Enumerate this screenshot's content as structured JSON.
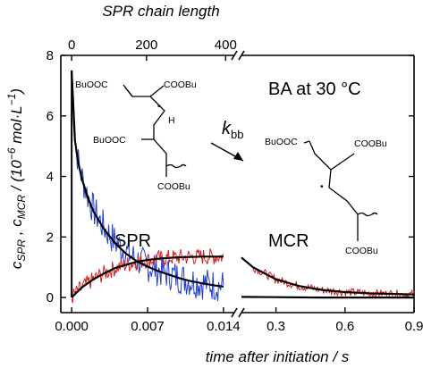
{
  "chart_data": {
    "type": "line",
    "title": "",
    "top_axis": {
      "label": "SPR chain length",
      "ticks": [
        {
          "text": "0",
          "t": 0.0
        },
        {
          "text": "200",
          "t": 0.0069
        },
        {
          "text": "400",
          "t": 0.0142
        }
      ]
    },
    "xlabel": "time after initiation / s",
    "x_segments": [
      {
        "xlim": [
          -0.001,
          0.015
        ],
        "ticks": [
          "0.000",
          "0.007",
          "0.014"
        ]
      },
      {
        "xlim": [
          0.15,
          0.9
        ],
        "ticks": [
          "0.3",
          "0.6",
          "0.9"
        ]
      }
    ],
    "ylabel": "cSPR , cMCR / (10−6 mol·L−1)",
    "ylabel_parts": {
      "c1": "c",
      "s1": "SPR",
      "sep": " , ",
      "c2": "c",
      "s2": "MCR",
      "units_pre": " / (10",
      "e1": "−6",
      "units_mid": " mol·L",
      "e2": "−1",
      "units_post": ")"
    },
    "ylim": [
      -0.5,
      8
    ],
    "yticks": [
      "0",
      "2",
      "4",
      "6",
      "8"
    ],
    "series": [
      {
        "name": "SPR",
        "color": "#1f3fd0",
        "style": "noisy experimental trace",
        "x": [
          0.0,
          0.0003,
          0.0006,
          0.001,
          0.0015,
          0.002,
          0.003,
          0.004,
          0.005,
          0.006,
          0.007,
          0.008,
          0.009,
          0.01,
          0.011,
          0.012,
          0.013,
          0.014
        ],
        "y": [
          7.5,
          5.3,
          4.5,
          3.9,
          3.35,
          2.9,
          2.3,
          1.85,
          1.5,
          1.25,
          1.05,
          0.9,
          0.78,
          0.65,
          0.55,
          0.48,
          0.42,
          0.38
        ]
      },
      {
        "name": "MCR",
        "color": "#d42020",
        "style": "noisy experimental trace",
        "x": [
          0.0,
          0.0005,
          0.001,
          0.002,
          0.003,
          0.004,
          0.005,
          0.006,
          0.007,
          0.008,
          0.009,
          0.01,
          0.011,
          0.012,
          0.013,
          0.014,
          0.2,
          0.3,
          0.4,
          0.5,
          0.6,
          0.7,
          0.8,
          0.9
        ],
        "y": [
          0.0,
          0.18,
          0.35,
          0.6,
          0.8,
          0.97,
          1.08,
          1.18,
          1.24,
          1.28,
          1.31,
          1.33,
          1.34,
          1.35,
          1.35,
          1.35,
          1.0,
          0.6,
          0.38,
          0.25,
          0.18,
          0.14,
          0.12,
          0.1
        ]
      },
      {
        "name": "SPR fit",
        "color": "#000000",
        "style": "model",
        "x": [
          0.0,
          0.0003,
          0.0006,
          0.001,
          0.0015,
          0.002,
          0.003,
          0.004,
          0.005,
          0.006,
          0.007,
          0.008,
          0.009,
          0.01,
          0.011,
          0.012,
          0.013,
          0.014,
          0.15,
          0.3,
          0.5,
          0.7,
          0.9
        ],
        "y": [
          7.5,
          5.2,
          4.45,
          3.85,
          3.3,
          2.85,
          2.25,
          1.8,
          1.45,
          1.2,
          1.02,
          0.87,
          0.75,
          0.63,
          0.54,
          0.47,
          0.41,
          0.36,
          0.02,
          0.01,
          0.0,
          0.0,
          0.0
        ]
      },
      {
        "name": "MCR fit",
        "color": "#000000",
        "style": "model",
        "x": [
          0.0,
          0.0005,
          0.001,
          0.002,
          0.003,
          0.004,
          0.005,
          0.006,
          0.007,
          0.008,
          0.009,
          0.01,
          0.011,
          0.012,
          0.013,
          0.014,
          0.15,
          0.2,
          0.3,
          0.4,
          0.5,
          0.6,
          0.7,
          0.8,
          0.9
        ],
        "y": [
          0.0,
          0.18,
          0.35,
          0.6,
          0.8,
          0.97,
          1.08,
          1.18,
          1.24,
          1.28,
          1.31,
          1.33,
          1.34,
          1.35,
          1.35,
          1.35,
          1.32,
          1.0,
          0.6,
          0.38,
          0.25,
          0.18,
          0.14,
          0.12,
          0.1
        ]
      }
    ],
    "annotations": {
      "spr": "SPR",
      "mcr": "MCR",
      "condition": "BA at 30 °C",
      "rate_k": "k",
      "rate_sub": "bb"
    },
    "structures": {
      "spr": {
        "g1": "BuOOC",
        "g2": "COOBu",
        "g3": "BuOOC",
        "g4": "COOBu",
        "h": "H",
        "dot": "•"
      },
      "mcr": {
        "g1": "BuOOC",
        "g2": "COOBu",
        "g3": "COOBu",
        "dot": "•"
      }
    }
  }
}
